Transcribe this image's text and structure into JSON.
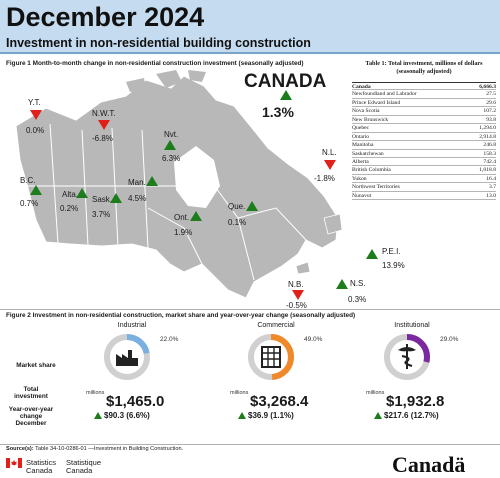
{
  "header": {
    "title": "December 2024",
    "subtitle": "Investment in non-residential building construction"
  },
  "figure1": {
    "caption": "Figure 1  Month-to-month change in non-residential construction investment (seasonally adjusted)",
    "canada": {
      "name": "CANADA",
      "value": "1.3%",
      "direction": "up"
    },
    "regions": [
      {
        "name": "Y.T.",
        "value": "0.0%",
        "direction": "down"
      },
      {
        "name": "N.W.T.",
        "value": "-6.8%",
        "direction": "down"
      },
      {
        "name": "Nvt.",
        "value": "6.3%",
        "direction": "up"
      },
      {
        "name": "B.C.",
        "value": "0.7%",
        "direction": "up"
      },
      {
        "name": "Alta.",
        "value": "0.2%",
        "direction": "up"
      },
      {
        "name": "Sask.",
        "value": "3.7%",
        "direction": "up"
      },
      {
        "name": "Man.",
        "value": "4.5%",
        "direction": "up"
      },
      {
        "name": "Ont.",
        "value": "1.9%",
        "direction": "up"
      },
      {
        "name": "Que.",
        "value": "0.1%",
        "direction": "up"
      },
      {
        "name": "N.L.",
        "value": "-1.8%",
        "direction": "down"
      },
      {
        "name": "P.E.I.",
        "value": "13.9%",
        "direction": "up"
      },
      {
        "name": "N.S.",
        "value": "0.3%",
        "direction": "up"
      },
      {
        "name": "N.B.",
        "value": "-0.5%",
        "direction": "down"
      }
    ]
  },
  "table1": {
    "caption": "Table 1: Total investment, millions of dollars (seasonally adjusted)",
    "rows": [
      {
        "name": "Canada",
        "value": "6,666.3"
      },
      {
        "name": "Newfoundland and Labrador",
        "value": "27.5"
      },
      {
        "name": "Prince Edward Island",
        "value": "29.6"
      },
      {
        "name": "Nova Scotia",
        "value": "107.2"
      },
      {
        "name": "New Brunswick",
        "value": "93.8"
      },
      {
        "name": "Quebec",
        "value": "1,294.0"
      },
      {
        "name": "Ontario",
        "value": "2,914.8"
      },
      {
        "name": "Manitoba",
        "value": "246.8"
      },
      {
        "name": "Saskatchewan",
        "value": "158.3"
      },
      {
        "name": "Alberta",
        "value": "742.4"
      },
      {
        "name": "British Columbia",
        "value": "1,018.8"
      },
      {
        "name": "Yukon",
        "value": "16.4"
      },
      {
        "name": "Northwest Territories",
        "value": "3.7"
      },
      {
        "name": "Nunavut",
        "value": "13.0"
      }
    ]
  },
  "figure2": {
    "caption": "Figure 2 Investment in non-residential construction, market share and year-over-year change (seasonally adjusted)",
    "labels": {
      "market_share": "Market share",
      "total_investment": "Total investment",
      "yoy_change": "Year-over-year change December",
      "millions": "millions"
    },
    "columns": [
      {
        "title": "Industrial",
        "share_label": "22.0%",
        "share": 0.22,
        "color": "#7ab0e0",
        "total": "$1,465.0",
        "change": "$90.3 (6.6%)",
        "icon": "factory-icon"
      },
      {
        "title": "Commercial",
        "share_label": "49.0%",
        "share": 0.49,
        "color": "#f0892a",
        "total": "$3,268.4",
        "change": "$36.9 (1.1%)",
        "icon": "building-icon"
      },
      {
        "title": "Institutional",
        "share_label": "29.0%",
        "share": 0.29,
        "color": "#7a2a9e",
        "total": "$1,932.8",
        "change": "$217.6 (12.7%)",
        "icon": "caduceus-icon"
      }
    ]
  },
  "footer": {
    "source_label": "Source(s):",
    "source_text": "Table 34-10-0286-01 —Investment in Building Construction.",
    "statcan_en_1": "Statistics",
    "statcan_en_2": "Canada",
    "statcan_fr_1": "Statistique",
    "statcan_fr_2": "Canada",
    "wordmark": "Canadä"
  },
  "colors": {
    "up": "#1d7d1d",
    "down": "#e0201a",
    "header_bg": "#c5dbef"
  }
}
